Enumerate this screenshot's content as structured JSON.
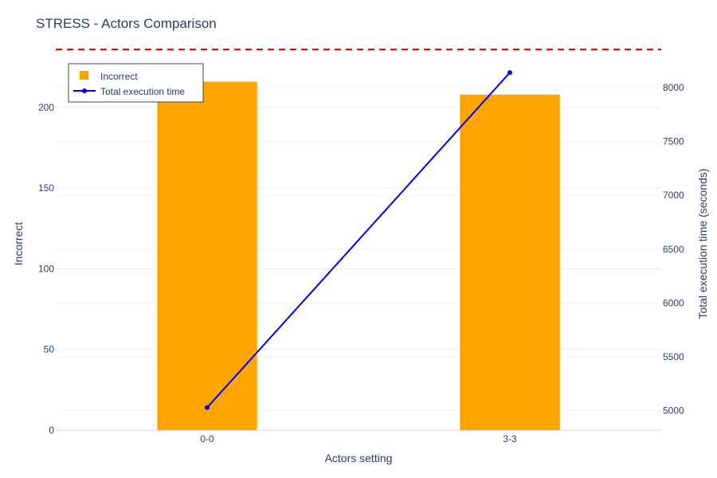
{
  "chart_data": {
    "type": "bar",
    "title": "STRESS - Actors Comparison",
    "xlabel": "Actors setting",
    "categories": [
      "0-0",
      "3-3"
    ],
    "series": [
      {
        "name": "Incorrect",
        "kind": "bar",
        "axis": "y",
        "color": "#FFA500",
        "values": [
          216,
          208
        ]
      },
      {
        "name": "Total execution time",
        "kind": "line",
        "axis": "y2",
        "color": "#0000FF",
        "values": [
          5030,
          8140
        ]
      }
    ],
    "y": {
      "label": "Incorrect",
      "range": [
        0,
        237
      ],
      "ticks": [
        0,
        50,
        100,
        150,
        200
      ]
    },
    "y2": {
      "label": "Total execution time (seconds)",
      "range": [
        4820,
        8370
      ],
      "ticks": [
        5000,
        5500,
        6000,
        6500,
        7000,
        7500,
        8000
      ]
    },
    "reference_line": {
      "axis": "y",
      "value": 236,
      "color": "#FF0000",
      "style": "dashed"
    },
    "grid": true,
    "legend": {
      "placement": "top-left"
    }
  }
}
